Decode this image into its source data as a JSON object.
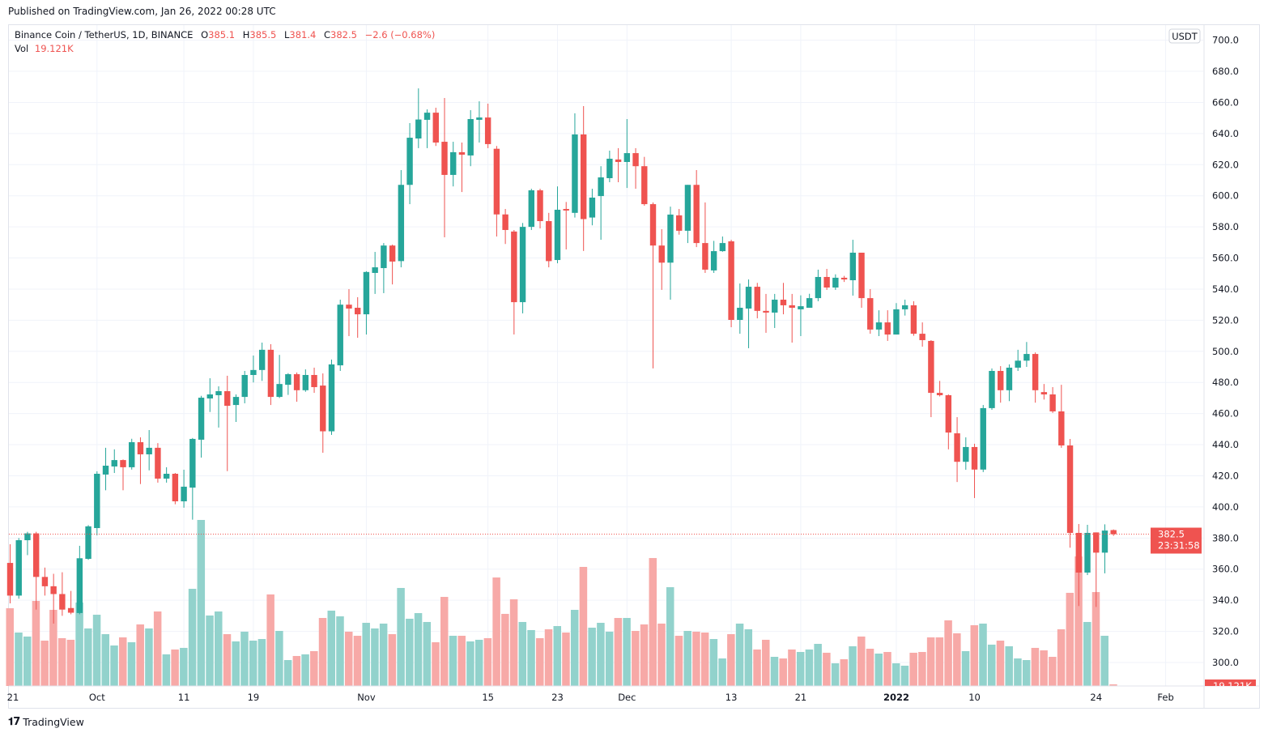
{
  "header": {
    "published": "Published on TradingView.com, Jan 26, 2022 00:28 UTC"
  },
  "legend": {
    "symbol": "Binance Coin / TetherUS, 1D, BINANCE",
    "o_label": "O",
    "o": "385.1",
    "h_label": "H",
    "h": "385.5",
    "l_label": "L",
    "l": "381.4",
    "c_label": "C",
    "c": "382.5",
    "change": "−2.6 (−0.68%)",
    "vol_label": "Vol",
    "vol": "19.121K"
  },
  "price_axis": {
    "currency": "USDT",
    "ticks": [
      "300.0",
      "320.0",
      "340.0",
      "360.0",
      "380.0",
      "400.0",
      "420.0",
      "440.0",
      "460.0",
      "480.0",
      "500.0",
      "520.0",
      "540.0",
      "560.0",
      "580.0",
      "600.0",
      "620.0",
      "640.0",
      "660.0",
      "680.0",
      "700.0"
    ]
  },
  "last_price": {
    "value": "382.5",
    "countdown": "23:31:58",
    "volume": "19.121K"
  },
  "time_axis": {
    "ticks": [
      {
        "label": "21",
        "date": "2021-09-21",
        "bold": false
      },
      {
        "label": "Oct",
        "date": "2021-10-01",
        "bold": false
      },
      {
        "label": "11",
        "date": "2021-10-11",
        "bold": false
      },
      {
        "label": "19",
        "date": "2021-10-19",
        "bold": false
      },
      {
        "label": "Nov",
        "date": "2021-11-01",
        "bold": false
      },
      {
        "label": "15",
        "date": "2021-11-15",
        "bold": false
      },
      {
        "label": "23",
        "date": "2021-11-23",
        "bold": false
      },
      {
        "label": "Dec",
        "date": "2021-12-01",
        "bold": false
      },
      {
        "label": "13",
        "date": "2021-12-13",
        "bold": false
      },
      {
        "label": "21",
        "date": "2021-12-21",
        "bold": false
      },
      {
        "label": "2022",
        "date": "2022-01-01",
        "bold": true
      },
      {
        "label": "10",
        "date": "2022-01-10",
        "bold": false
      },
      {
        "label": "24",
        "date": "2022-01-24",
        "bold": false
      },
      {
        "label": "Feb",
        "date": "2022-02-01",
        "bold": false
      }
    ]
  },
  "footer": {
    "brand": "TradingView",
    "logo": "17"
  },
  "colors": {
    "up": "#26a69a",
    "down": "#ef5350",
    "up_volume": "#92d2cc",
    "down_volume": "#f7a9a7",
    "grid": "#f0f3fa"
  },
  "chart_data": {
    "type": "candlestick",
    "title": "Binance Coin / TetherUS, 1D, BINANCE",
    "ylabel": "USDT",
    "ylim": [
      300,
      700
    ],
    "grid": true,
    "volume_unit": "K",
    "columns": [
      "date",
      "open",
      "high",
      "low",
      "close",
      "volume"
    ],
    "candles": [
      [
        "2021-09-21",
        364,
        376,
        338,
        343,
        912
      ],
      [
        "2021-09-22",
        343,
        380,
        341,
        378.6,
        627
      ],
      [
        "2021-09-23",
        378.6,
        384,
        369,
        383,
        580
      ],
      [
        "2021-09-24",
        383,
        384,
        334,
        355,
        998
      ],
      [
        "2021-09-25",
        355,
        361,
        343,
        349,
        532
      ],
      [
        "2021-09-26",
        349,
        357,
        325,
        344,
        893
      ],
      [
        "2021-09-27",
        344,
        358,
        330,
        334,
        561
      ],
      [
        "2021-09-28",
        335,
        346,
        331,
        332,
        542
      ],
      [
        "2021-09-29",
        331.8,
        375,
        331,
        367,
        979
      ],
      [
        "2021-09-30",
        366.6,
        388.3,
        366,
        387.5,
        675
      ],
      [
        "2021-10-01",
        386.4,
        422.9,
        381.7,
        421.3,
        836
      ],
      [
        "2021-10-02",
        420.8,
        438,
        410.7,
        426.5,
        608
      ],
      [
        "2021-10-03",
        426,
        437,
        421.8,
        430.1,
        475
      ],
      [
        "2021-10-04",
        430.1,
        430.5,
        410.7,
        425.5,
        570
      ],
      [
        "2021-10-05",
        425.5,
        443.8,
        424,
        441.6,
        513
      ],
      [
        "2021-10-06",
        441.6,
        444.7,
        414.7,
        433.8,
        722
      ],
      [
        "2021-10-07",
        433.8,
        449.4,
        423.5,
        438,
        675
      ],
      [
        "2021-10-08",
        438,
        441,
        415.6,
        418.2,
        874
      ],
      [
        "2021-10-09",
        418.2,
        425.5,
        415.6,
        421.3,
        371
      ],
      [
        "2021-10-10",
        421.3,
        421.8,
        401.7,
        403.6,
        428
      ],
      [
        "2021-10-11",
        403.6,
        423.9,
        399.5,
        413,
        447
      ],
      [
        "2021-10-12",
        412.4,
        444.3,
        391.8,
        443.7,
        1140
      ],
      [
        "2021-10-13",
        443.2,
        471.4,
        431.7,
        470.2,
        1948
      ],
      [
        "2021-10-14",
        469.7,
        482.7,
        461,
        472.3,
        827
      ],
      [
        "2021-10-15",
        471.8,
        477.5,
        451,
        474.4,
        874
      ],
      [
        "2021-10-16",
        474.4,
        484.3,
        423,
        465,
        608
      ],
      [
        "2021-10-17",
        465.5,
        472.3,
        454.6,
        470.7,
        523
      ],
      [
        "2021-10-18",
        470.7,
        487.4,
        466.6,
        484.8,
        637
      ],
      [
        "2021-10-19",
        484.8,
        497.3,
        480,
        488,
        532
      ],
      [
        "2021-10-20",
        488,
        505.6,
        481,
        501,
        551
      ],
      [
        "2021-10-21",
        501,
        504.6,
        465.5,
        470.7,
        1074
      ],
      [
        "2021-10-22",
        470.7,
        497.7,
        470,
        479,
        646
      ],
      [
        "2021-10-23",
        478.5,
        486,
        472,
        485.3,
        304
      ],
      [
        "2021-10-24",
        485.3,
        486.4,
        467.6,
        475,
        352
      ],
      [
        "2021-10-25",
        475,
        488.4,
        474,
        484.8,
        371
      ],
      [
        "2021-10-26",
        484.8,
        489.5,
        473.3,
        477,
        409
      ],
      [
        "2021-10-27",
        478,
        485.8,
        434.8,
        448.6,
        798
      ],
      [
        "2021-10-28",
        448.6,
        494.7,
        446.3,
        491.6,
        884
      ],
      [
        "2021-10-29",
        491,
        533.2,
        487.4,
        530,
        817
      ],
      [
        "2021-10-30",
        530,
        540,
        509.8,
        527.5,
        637
      ],
      [
        "2021-10-31",
        528,
        534.8,
        508.7,
        523.8,
        589
      ],
      [
        "2021-11-01",
        523.8,
        551.5,
        510.8,
        551,
        741
      ],
      [
        "2021-11-02",
        550.4,
        563.9,
        536.9,
        554,
        675
      ],
      [
        "2021-11-03",
        553.5,
        569.6,
        537.4,
        568,
        732
      ],
      [
        "2021-11-04",
        568,
        568.6,
        543,
        557.7,
        608
      ],
      [
        "2021-11-05",
        558,
        616.5,
        554,
        607,
        1150
      ],
      [
        "2021-11-06",
        607,
        646.7,
        594.6,
        637.3,
        789
      ],
      [
        "2021-11-07",
        636.8,
        669,
        630.6,
        649,
        855
      ],
      [
        "2021-11-08",
        648.8,
        655.5,
        630.6,
        653.4,
        751
      ],
      [
        "2021-11-09",
        653.4,
        656.6,
        632,
        634.2,
        513
      ],
      [
        "2021-11-10",
        634.7,
        662.8,
        573.3,
        613.4,
        1045
      ],
      [
        "2021-11-11",
        613.4,
        634.7,
        606,
        628,
        589
      ],
      [
        "2021-11-12",
        628,
        634.2,
        602.4,
        626.4,
        589
      ],
      [
        "2021-11-13",
        625.9,
        655,
        619,
        649.3,
        523
      ],
      [
        "2021-11-14",
        648.8,
        660.7,
        634.2,
        650.3,
        542
      ],
      [
        "2021-11-15",
        650.3,
        659.2,
        630.6,
        633.2,
        561
      ],
      [
        "2021-11-16",
        630.2,
        632,
        573.8,
        588,
        1273
      ],
      [
        "2021-11-17",
        588,
        591.5,
        569,
        578,
        846
      ],
      [
        "2021-11-18",
        577,
        578,
        510.8,
        531.6,
        1017
      ],
      [
        "2021-11-19",
        531.6,
        582.5,
        524.4,
        580,
        751
      ],
      [
        "2021-11-20",
        580,
        604.5,
        578,
        603.5,
        656
      ],
      [
        "2021-11-21",
        603.5,
        604.5,
        579,
        583.7,
        561
      ],
      [
        "2021-11-22",
        583.7,
        589,
        554,
        558,
        665
      ],
      [
        "2021-11-23",
        558.7,
        606,
        556.6,
        591,
        703
      ],
      [
        "2021-11-24",
        591.5,
        596,
        565.5,
        590.5,
        627
      ],
      [
        "2021-11-25",
        589,
        653,
        586,
        639.4,
        893
      ],
      [
        "2021-11-26",
        639.4,
        657.6,
        564.5,
        585,
        1397
      ],
      [
        "2021-11-27",
        586,
        604.5,
        581,
        598.8,
        684
      ],
      [
        "2021-11-28",
        599.8,
        619,
        571.7,
        611.8,
        741
      ],
      [
        "2021-11-29",
        611.3,
        629,
        608.7,
        623.8,
        637
      ],
      [
        "2021-11-30",
        623.3,
        630.6,
        608.7,
        621.7,
        798
      ],
      [
        "2021-12-01",
        621.7,
        649.3,
        605,
        627.4,
        798
      ],
      [
        "2021-12-02",
        627.4,
        630.6,
        604.5,
        619,
        646
      ],
      [
        "2021-12-03",
        619,
        625,
        593.6,
        594.6,
        722
      ],
      [
        "2021-12-04",
        594.6,
        595.7,
        489,
        568,
        1501
      ],
      [
        "2021-12-05",
        568,
        578.5,
        539.5,
        557,
        732
      ],
      [
        "2021-12-06",
        557,
        593,
        533.2,
        587.9,
        1159
      ],
      [
        "2021-12-07",
        587.4,
        591.5,
        575,
        577.5,
        589
      ],
      [
        "2021-12-08",
        577.5,
        607,
        569.6,
        607,
        646
      ],
      [
        "2021-12-09",
        607,
        616.5,
        567,
        569.6,
        637
      ],
      [
        "2021-12-10",
        569.6,
        595.7,
        550.4,
        552.5,
        627
      ],
      [
        "2021-12-11",
        552,
        571,
        550.4,
        564.4,
        551
      ],
      [
        "2021-12-12",
        564.4,
        573.8,
        564,
        569.6,
        323
      ],
      [
        "2021-12-13",
        570.7,
        571.7,
        515.5,
        520.2,
        608
      ],
      [
        "2021-12-14",
        520.2,
        543.6,
        511.3,
        528,
        732
      ],
      [
        "2021-12-15",
        527.5,
        546.2,
        502,
        541.5,
        665
      ],
      [
        "2021-12-16",
        541.5,
        544,
        521.2,
        526,
        428
      ],
      [
        "2021-12-17",
        526,
        536.9,
        511.9,
        524.9,
        542
      ],
      [
        "2021-12-18",
        524.9,
        536.9,
        515,
        533.2,
        342
      ],
      [
        "2021-12-19",
        533.2,
        544,
        523.8,
        529.6,
        323
      ],
      [
        "2021-12-20",
        529.6,
        536.9,
        505.6,
        528,
        428
      ],
      [
        "2021-12-21",
        527,
        536,
        509.8,
        529,
        399
      ],
      [
        "2021-12-22",
        528,
        537,
        528,
        534.2,
        428
      ],
      [
        "2021-12-23",
        534.2,
        552.5,
        532.2,
        547.8,
        494
      ],
      [
        "2021-12-24",
        547.8,
        553,
        539.5,
        541,
        390
      ],
      [
        "2021-12-25",
        541,
        549.5,
        539.5,
        547.3,
        266
      ],
      [
        "2021-12-26",
        547.3,
        548.5,
        544.6,
        546.2,
        314
      ],
      [
        "2021-12-27",
        545.7,
        571.7,
        535.8,
        563.4,
        466
      ],
      [
        "2021-12-28",
        563.4,
        563.4,
        528,
        534.2,
        580
      ],
      [
        "2021-12-29",
        534.2,
        540,
        511.3,
        514,
        437
      ],
      [
        "2021-12-30",
        514,
        526.4,
        509.8,
        518.6,
        380
      ],
      [
        "2021-12-31",
        518.6,
        526.4,
        506.7,
        510.8,
        399
      ],
      [
        "2022-01-01",
        510.8,
        531,
        510.8,
        527,
        266
      ],
      [
        "2022-01-02",
        527,
        533.2,
        523,
        529.6,
        238
      ],
      [
        "2022-01-03",
        529.6,
        532.2,
        510,
        511.3,
        390
      ],
      [
        "2022-01-04",
        511.3,
        518.6,
        503,
        507.2,
        399
      ],
      [
        "2022-01-05",
        506.7,
        507.2,
        457.7,
        473.3,
        570
      ],
      [
        "2022-01-06",
        473.3,
        481,
        471,
        471.8,
        570
      ],
      [
        "2022-01-07",
        471.8,
        472.3,
        437,
        447.8,
        770
      ],
      [
        "2022-01-08",
        447.3,
        457.7,
        416,
        429,
        618
      ],
      [
        "2022-01-09",
        429,
        444.7,
        423.9,
        438.5,
        409
      ],
      [
        "2022-01-10",
        438.5,
        440.6,
        405.7,
        424,
        713
      ],
      [
        "2022-01-11",
        424,
        465.5,
        422.4,
        463.5,
        732
      ],
      [
        "2022-01-12",
        463.5,
        489,
        462.4,
        487.4,
        485
      ],
      [
        "2022-01-13",
        487.4,
        490.5,
        467,
        475,
        532
      ],
      [
        "2022-01-14",
        475,
        491.6,
        468,
        489.5,
        466
      ],
      [
        "2022-01-15",
        489.5,
        501,
        487.4,
        494,
        323
      ],
      [
        "2022-01-16",
        494,
        506,
        490,
        498.3,
        304
      ],
      [
        "2022-01-17",
        498.3,
        499.3,
        467,
        475,
        447
      ],
      [
        "2022-01-18",
        473.8,
        479,
        469,
        472.3,
        418
      ],
      [
        "2022-01-19",
        472.3,
        477,
        460.4,
        461.4,
        342
      ],
      [
        "2022-01-20",
        461.4,
        478.5,
        438,
        439.5,
        665
      ],
      [
        "2022-01-21",
        439.5,
        443.7,
        373.8,
        383.3,
        1093
      ],
      [
        "2022-01-22",
        383.3,
        389,
        336.3,
        357.8,
        1520
      ],
      [
        "2022-01-23",
        357.8,
        388.5,
        356.2,
        383.3,
        751
      ],
      [
        "2022-01-24",
        383.6,
        383.6,
        335.7,
        370.6,
        1102
      ],
      [
        "2022-01-25",
        370.6,
        388.8,
        357.3,
        384.8,
        589
      ],
      [
        "2022-01-26",
        385.1,
        385.5,
        381.4,
        382.5,
        19.121
      ]
    ]
  }
}
